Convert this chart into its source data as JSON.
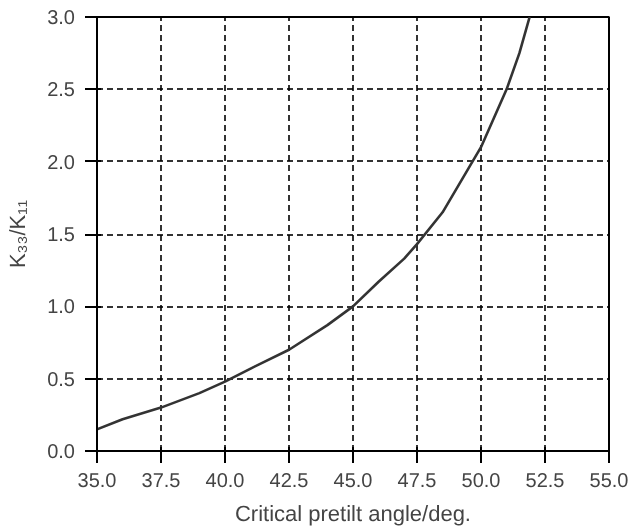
{
  "chart_data": {
    "type": "line",
    "xlabel": "Critical pretilt angle/deg.",
    "ylabel": "K₃₃/K₁₁",
    "x": [
      35,
      36,
      37.5,
      39,
      40,
      41,
      42.5,
      44,
      45,
      46,
      47,
      47.5,
      48.5,
      49.5,
      50,
      50.5,
      51,
      51.5,
      51.9
    ],
    "series": [
      {
        "color": "#333333",
        "values": [
          0.15,
          0.22,
          0.3,
          0.4,
          0.48,
          0.57,
          0.7,
          0.87,
          1.0,
          1.17,
          1.33,
          1.43,
          1.65,
          1.95,
          2.1,
          2.3,
          2.5,
          2.75,
          3.0
        ]
      }
    ],
    "xlim": [
      35,
      55
    ],
    "ylim": [
      0,
      3
    ],
    "xticks": [
      {
        "value": 35,
        "label": "35.0"
      },
      37.5,
      {
        "value": 40,
        "label": "40.0"
      },
      42.5,
      {
        "value": 45,
        "label": "45.0"
      },
      47.5,
      {
        "value": 50,
        "label": "50.0"
      },
      52.5,
      {
        "value": 55,
        "label": "55.0"
      }
    ],
    "yticks": [
      {
        "value": 0,
        "label": "0.0"
      },
      0.5,
      {
        "value": 1,
        "label": "1.0"
      },
      1.5,
      {
        "value": 2,
        "label": "2.0"
      },
      2.5,
      {
        "value": 3,
        "label": "3.0"
      }
    ],
    "grid": true,
    "line_style": "solid",
    "marker": "none"
  }
}
